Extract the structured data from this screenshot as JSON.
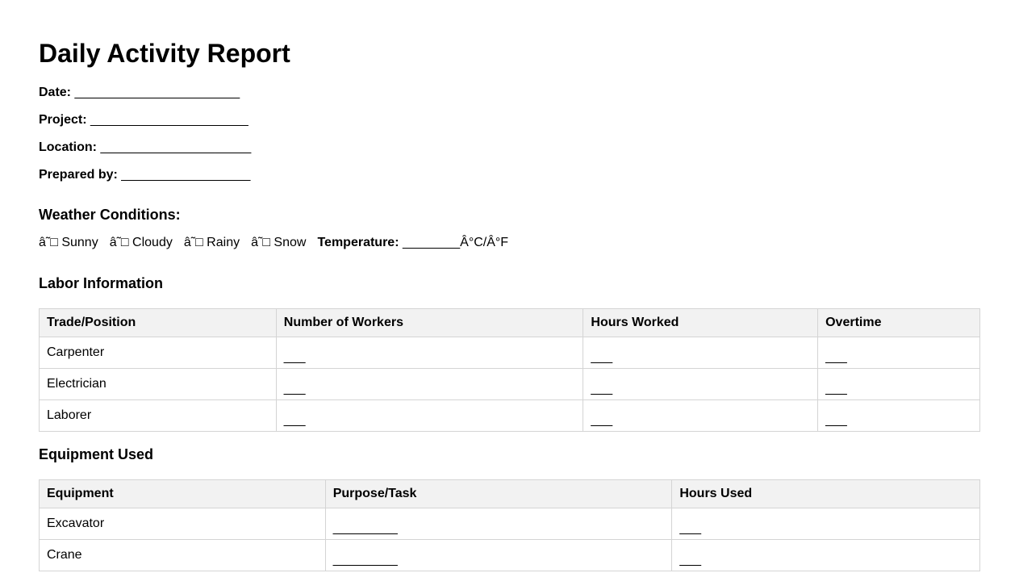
{
  "title": "Daily Activity Report",
  "fields": [
    {
      "label": "Date:",
      "blank": "_______________________"
    },
    {
      "label": "Project:",
      "blank": "______________________"
    },
    {
      "label": "Location:",
      "blank": "_____________________"
    },
    {
      "label": "Prepared by:",
      "blank": "__________________"
    }
  ],
  "weather": {
    "heading": "Weather Conditions:",
    "options": [
      "â˜□ Sunny",
      "â˜□ Cloudy",
      "â˜□ Rainy",
      "â˜□ Snow"
    ],
    "temperature_label": "Temperature:",
    "temperature_blank": "________",
    "temperature_units": "Â°C/Â°F"
  },
  "labor": {
    "heading": "Labor Information",
    "columns": [
      "Trade/Position",
      "Number of Workers",
      "Hours Worked",
      "Overtime"
    ],
    "rows": [
      [
        "Carpenter",
        "___",
        "___",
        "___"
      ],
      [
        "Electrician",
        "___",
        "___",
        "___"
      ],
      [
        "Laborer",
        "___",
        "___",
        "___"
      ]
    ]
  },
  "equipment": {
    "heading": "Equipment Used",
    "columns": [
      "Equipment",
      "Purpose/Task",
      "Hours Used"
    ],
    "rows": [
      [
        "Excavator",
        "_________",
        "___"
      ],
      [
        "Crane",
        "_________",
        "___"
      ]
    ]
  }
}
